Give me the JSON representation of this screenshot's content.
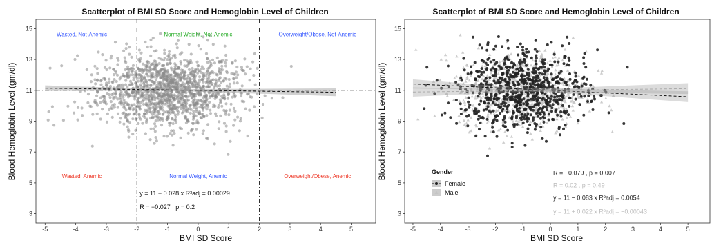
{
  "chart_data": [
    {
      "type": "scatter",
      "title": "Scatterplot of BMI SD Score and Hemoglobin Level of Children",
      "xlabel": "BMI SD Score",
      "ylabel": "Blood Hemoglobin Level (gm/dl)",
      "xlim": [
        -5.3,
        5.8
      ],
      "ylim": [
        2.4,
        15.6
      ],
      "xticks": [
        -5,
        -4,
        -3,
        -2,
        -1,
        0,
        1,
        2,
        3,
        4,
        5
      ],
      "yticks": [
        3,
        5,
        7,
        9,
        11,
        13,
        15
      ],
      "grid": false,
      "reference_lines": {
        "vertical": [
          -2,
          2
        ],
        "horizontal": [
          11
        ]
      },
      "fit_line": {
        "intercept": 11,
        "slope": -0.028,
        "x_range": [
          -5,
          4.5
        ]
      },
      "quadrant_labels": [
        {
          "text": "Wasted, Not-Anemic",
          "color": "#3355ff",
          "x": -3.8,
          "y": 14.5
        },
        {
          "text": "Normal Weight, Not-Anemic",
          "color": "#22aa22",
          "x": 0,
          "y": 14.5
        },
        {
          "text": "Overweight/Obese, Not-Anemic",
          "color": "#3355ff",
          "x": 3.9,
          "y": 14.5
        },
        {
          "text": "Wasted, Anemic",
          "color": "#ee3322",
          "x": -3.8,
          "y": 5.3
        },
        {
          "text": "Normal Weight, Anemic",
          "color": "#3355ff",
          "x": 0,
          "y": 5.3
        },
        {
          "text": "Overweight/Obese, Anemic",
          "color": "#ee3322",
          "x": 3.9,
          "y": 5.3
        }
      ],
      "annotations": [
        {
          "text": "y = 11 − 0.028 x   R²adj = 0.00029",
          "x": -2,
          "y": 4.2
        },
        {
          "text": "R = −0.027 , p = 0.2",
          "x": -2,
          "y": 3.3
        }
      ],
      "point_color": "#8a8a8a"
    },
    {
      "type": "scatter",
      "title": "Scatterplot of BMI SD Score and Hemoglobin Level of Children",
      "xlabel": "BMI SD Score",
      "ylabel": "Blood Hemoglobin Level (gm/dl)",
      "xlim": [
        -5.3,
        5.8
      ],
      "ylim": [
        2.4,
        15.6
      ],
      "xticks": [
        -5,
        -4,
        -3,
        -2,
        -1,
        0,
        1,
        2,
        3,
        4,
        5
      ],
      "yticks": [
        3,
        5,
        7,
        9,
        11,
        13,
        15
      ],
      "grid": false,
      "legend": {
        "title": "Gender",
        "placement": "bottom-left",
        "entries": [
          {
            "name": "Female",
            "color": "#222222"
          },
          {
            "name": "Male",
            "color": "#c4c4c4"
          }
        ]
      },
      "series": [
        {
          "name": "Female",
          "color": "#222222",
          "fit": {
            "intercept": 11,
            "slope": -0.083,
            "x_range": [
              -5,
              5
            ]
          }
        },
        {
          "name": "Male",
          "color": "#c4c4c4",
          "fit": {
            "intercept": 11,
            "slope": 0.022,
            "x_range": [
              -5,
              5
            ]
          }
        }
      ],
      "annotations": [
        {
          "text": "R = −0.079 , p = 0.007",
          "color": "#222222",
          "x": 0.1,
          "y": 5.5
        },
        {
          "text": "R = 0.02 , p = 0.49",
          "color": "#bbbbbb",
          "x": 0.1,
          "y": 4.7
        },
        {
          "text": "y = 11 − 0.083 x   R²adj = 0.0054",
          "color": "#222222",
          "x": 0.1,
          "y": 3.9
        },
        {
          "text": "y = 11 + 0.022 x   R²adj = −0.00043",
          "color": "#bbbbbb",
          "x": 0.1,
          "y": 3.0
        }
      ]
    }
  ]
}
